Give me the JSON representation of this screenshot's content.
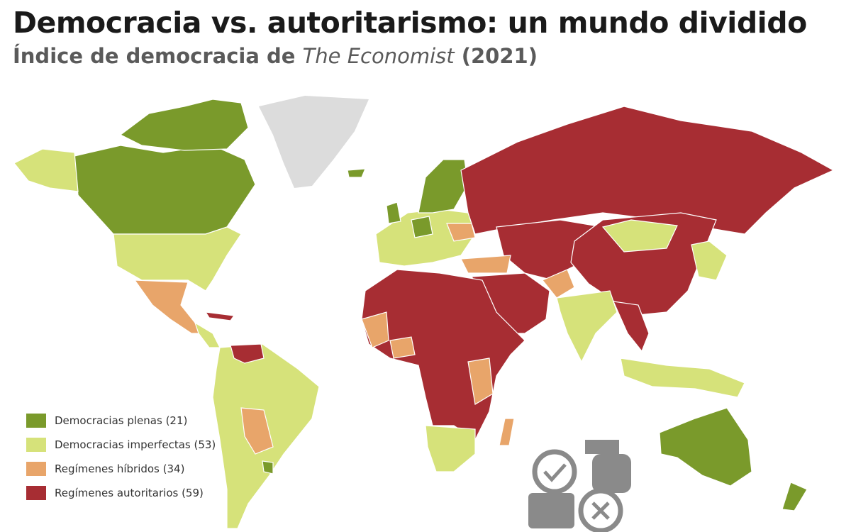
{
  "header": {
    "title": "Democracia vs. autoritarismo: un mundo dividido",
    "subtitle": {
      "before": "Índice de democracia de ",
      "italic": "The Economist",
      "after": " (2021)"
    }
  },
  "legend": [
    {
      "label": "Democracias plenas (21)",
      "color": "#7a9a2b"
    },
    {
      "label": "Democracias imperfectas (53)",
      "color": "#d6e27a"
    },
    {
      "label": "Regímenes híbridos (34)",
      "color": "#e8a56a"
    },
    {
      "label": "Regímenes autoritarios (59)",
      "color": "#a72d33"
    }
  ]
}
